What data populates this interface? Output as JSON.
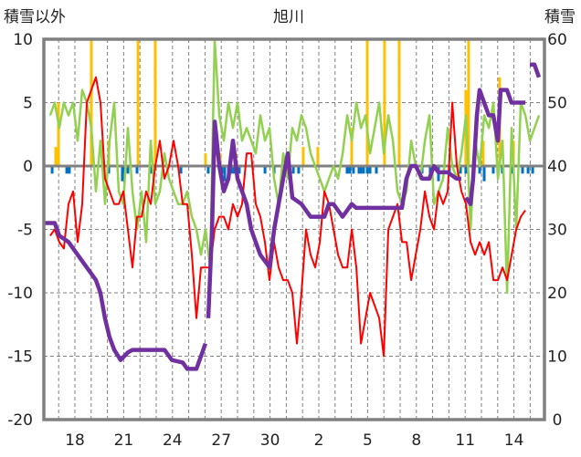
{
  "chart_data": {
    "type": "line",
    "title": "旭川",
    "left_axis_label": "積雪以外",
    "right_axis_label": "積雪",
    "left_ylim": [
      -20,
      10
    ],
    "right_ylim": [
      0,
      60
    ],
    "left_ticks": [
      "10",
      "5",
      "0",
      "-5",
      "-10",
      "-15",
      "-20"
    ],
    "right_ticks": [
      "60",
      "50",
      "40",
      "30",
      "20",
      "10",
      "0"
    ],
    "x_ticks": [
      {
        "day": 0,
        "label": "18"
      },
      {
        "day": 3,
        "label": "21"
      },
      {
        "day": 6,
        "label": "24"
      },
      {
        "day": 9,
        "label": "27"
      },
      {
        "day": 12,
        "label": "30"
      },
      {
        "day": 15,
        "label": "2"
      },
      {
        "day": 18,
        "label": "5"
      },
      {
        "day": 21,
        "label": "8"
      },
      {
        "day": 24,
        "label": "11"
      },
      {
        "day": 27,
        "label": "14"
      }
    ],
    "xlim_days": [
      -1.91,
      28.88
    ],
    "grid": "dashed, daily vertical and every 5 units horizontal",
    "colors": {
      "red": "#ff0000",
      "green": "#92d050",
      "purple": "#7030a0",
      "yellow": "#ffc000",
      "blue": "#0070c0",
      "frame": "#808080"
    },
    "series": [
      {
        "name": "red",
        "axis": "left",
        "color": "#ff0000",
        "x_start": -1.52,
        "step_days": 0.281,
        "values": [
          -5.5,
          -5,
          -6,
          -6.5,
          -3,
          -2,
          -6,
          -3,
          5,
          6,
          7,
          5,
          -1,
          -2,
          -3,
          -3,
          -2,
          -5,
          -8,
          -4,
          -4,
          -2,
          -3,
          0,
          2,
          -1,
          0,
          2,
          0,
          -3,
          -3,
          -7,
          -12,
          -8,
          -8,
          -8,
          -5,
          -4,
          -4,
          -5,
          -3,
          -4,
          -3,
          1,
          1,
          -3,
          -4,
          -6,
          -9,
          -6,
          -8,
          -9,
          -9,
          -10,
          -14,
          -10,
          -5,
          -7,
          -8,
          -6,
          -2,
          -3,
          -5,
          -7,
          -8,
          -8,
          -5,
          -8,
          -14,
          -12,
          -10,
          -11,
          -12,
          -15,
          -5,
          -4,
          -3,
          -6,
          -6,
          -9,
          -7,
          -5,
          -2,
          -4,
          -5,
          -2,
          -3,
          -2,
          5,
          0,
          -2,
          -3,
          -6,
          -7,
          -6,
          -7,
          -6,
          -9,
          -9,
          -8,
          -9,
          -7,
          -5,
          -4,
          -3.5
        ]
      },
      {
        "name": "green",
        "axis": "left",
        "color": "#92d050",
        "x_start": -1.52,
        "step_days": 0.281,
        "values": [
          4,
          5,
          3,
          5,
          4,
          5,
          2,
          6,
          5,
          3,
          -2,
          2,
          -3,
          2,
          5,
          -2,
          -3,
          3,
          -2,
          -5,
          -2,
          -6,
          2,
          -3,
          -2,
          1,
          -1,
          -2,
          -3,
          -3,
          -2,
          -4,
          -5,
          -7,
          -5,
          -8,
          10,
          4,
          2,
          5,
          3,
          5,
          2,
          3,
          2,
          1,
          4,
          2,
          3,
          -1,
          -3,
          1,
          -1,
          3,
          2,
          4,
          3,
          1,
          0,
          -1,
          -2,
          -1,
          0,
          -1,
          1,
          4,
          2,
          5,
          3,
          4,
          1,
          3,
          5,
          1,
          4,
          2,
          -2,
          -3,
          -2,
          2,
          0,
          -1,
          2,
          4,
          -3,
          -2,
          -1,
          3,
          0,
          -1,
          1,
          4,
          -5,
          2,
          0,
          4,
          3,
          5,
          -1,
          2,
          -10,
          3,
          -5,
          5,
          4,
          2,
          3,
          4
        ]
      },
      {
        "name": "purple (積雪)",
        "axis": "right",
        "color": "#7030a0",
        "points": [
          [
            -1.91,
            31
          ],
          [
            -1.24,
            31
          ],
          [
            -0.96,
            29
          ],
          [
            -0.39,
            28
          ],
          [
            0.17,
            26
          ],
          [
            0.73,
            24
          ],
          [
            1.29,
            22
          ],
          [
            1.57,
            20
          ],
          [
            1.85,
            16
          ],
          [
            2.13,
            13
          ],
          [
            2.42,
            11
          ],
          [
            2.81,
            9.4
          ],
          [
            3.26,
            10.6
          ],
          [
            3.54,
            11
          ],
          [
            4.38,
            11
          ],
          [
            5.51,
            11
          ],
          [
            5.96,
            9.4
          ],
          [
            6.63,
            9
          ],
          [
            6.91,
            8
          ],
          [
            7.47,
            8
          ],
          [
            7.75,
            10
          ],
          [
            8.03,
            12
          ],
          null,
          [
            8.2,
            16
          ],
          [
            8.43,
            30
          ],
          [
            8.6,
            47
          ],
          [
            8.88,
            40
          ],
          [
            9.16,
            36
          ],
          [
            9.44,
            38
          ],
          [
            9.72,
            44
          ],
          [
            10.0,
            38
          ],
          [
            10.28,
            36
          ],
          [
            10.56,
            34
          ],
          [
            10.84,
            30
          ],
          [
            11.12,
            28
          ],
          [
            11.4,
            26
          ],
          [
            11.69,
            25
          ],
          [
            11.97,
            24
          ],
          [
            12.25,
            30
          ],
          [
            12.53,
            34
          ],
          [
            12.81,
            38
          ],
          [
            13.09,
            42
          ],
          [
            13.37,
            35
          ],
          [
            13.93,
            34
          ],
          [
            14.49,
            32
          ],
          [
            15.06,
            32
          ],
          [
            15.34,
            32
          ],
          [
            15.62,
            34
          ],
          [
            15.9,
            34
          ],
          [
            16.46,
            32
          ],
          [
            17.02,
            34
          ],
          [
            17.3,
            33.4
          ],
          [
            20.11,
            33.4
          ],
          [
            20.39,
            38
          ],
          [
            20.67,
            40
          ],
          [
            20.96,
            40
          ],
          [
            21.35,
            38
          ],
          [
            21.8,
            38
          ],
          [
            22.08,
            40
          ],
          [
            22.36,
            39
          ],
          [
            22.92,
            39
          ],
          [
            23.48,
            38
          ],
          [
            23.76,
            38
          ],
          null,
          [
            24.04,
            35
          ],
          [
            24.33,
            34
          ],
          [
            24.49,
            38
          ],
          [
            24.72,
            48
          ],
          [
            24.89,
            52
          ],
          [
            25.17,
            50
          ],
          [
            25.45,
            48
          ],
          [
            25.73,
            48
          ],
          [
            26.01,
            44
          ],
          [
            26.18,
            52
          ],
          [
            26.57,
            52
          ],
          [
            26.85,
            50
          ],
          [
            27.7,
            50
          ],
          null,
          [
            27.98,
            56
          ],
          [
            28.26,
            56
          ],
          [
            28.54,
            54
          ]
        ]
      }
    ],
    "bars_positive": {
      "name": "yellow",
      "axis": "left",
      "color": "#ffc000",
      "points": [
        [
          -1.18,
          1.5
        ],
        [
          -1.01,
          5
        ],
        [
          1.01,
          10
        ],
        [
          2.08,
          2
        ],
        [
          3.88,
          10
        ],
        [
          4.94,
          10
        ],
        [
          8.03,
          1
        ],
        [
          8.93,
          1
        ],
        [
          9.89,
          1
        ],
        [
          14.04,
          1.5
        ],
        [
          14.94,
          1.5
        ],
        [
          17.02,
          3
        ],
        [
          17.98,
          10
        ],
        [
          19.04,
          10
        ],
        [
          19.94,
          10
        ],
        [
          24.04,
          6
        ],
        [
          24.21,
          10
        ],
        [
          25.11,
          2
        ],
        [
          26.12,
          7
        ],
        [
          26.97,
          2
        ]
      ]
    },
    "bars_negative": {
      "name": "blue",
      "axis": "left",
      "color": "#0070c0",
      "points": [
        [
          -1.4,
          -0.6
        ],
        [
          -0.5,
          -0.6
        ],
        [
          -0.34,
          -0.6
        ],
        [
          2.08,
          -0.6
        ],
        [
          2.92,
          -1.2
        ],
        [
          3.03,
          -0.6
        ],
        [
          3.26,
          -0.6
        ],
        [
          3.82,
          -0.6
        ],
        [
          4.72,
          -0.6
        ],
        [
          6.52,
          -0.6
        ],
        [
          8.2,
          -0.6
        ],
        [
          9.04,
          -0.6
        ],
        [
          9.21,
          -1.2
        ],
        [
          9.44,
          -1.2
        ],
        [
          9.61,
          -0.6
        ],
        [
          9.78,
          -0.6
        ],
        [
          10.11,
          -0.6
        ],
        [
          11.69,
          -0.6
        ],
        [
          12.25,
          -0.6
        ],
        [
          13.43,
          -0.6
        ],
        [
          13.76,
          -0.6
        ],
        [
          16.74,
          -0.6
        ],
        [
          16.91,
          -0.6
        ],
        [
          17.13,
          -0.6
        ],
        [
          17.47,
          -0.6
        ],
        [
          17.58,
          -0.6
        ],
        [
          17.75,
          -0.6
        ],
        [
          17.98,
          -0.6
        ],
        [
          18.15,
          -0.6
        ],
        [
          18.54,
          -0.6
        ],
        [
          20.56,
          -0.6
        ],
        [
          21.35,
          -0.6
        ],
        [
          21.85,
          -0.6
        ],
        [
          22.36,
          -1.2
        ],
        [
          23.03,
          -0.6
        ],
        [
          23.71,
          -0.6
        ],
        [
          24.04,
          -0.6
        ],
        [
          24.89,
          -0.6
        ],
        [
          25.17,
          -1.2
        ],
        [
          25.73,
          -0.6
        ],
        [
          26.01,
          -0.6
        ],
        [
          26.29,
          -0.6
        ],
        [
          26.85,
          -0.6
        ],
        [
          27.53,
          -0.6
        ],
        [
          27.87,
          -0.6
        ],
        [
          28.15,
          -0.6
        ]
      ]
    }
  }
}
